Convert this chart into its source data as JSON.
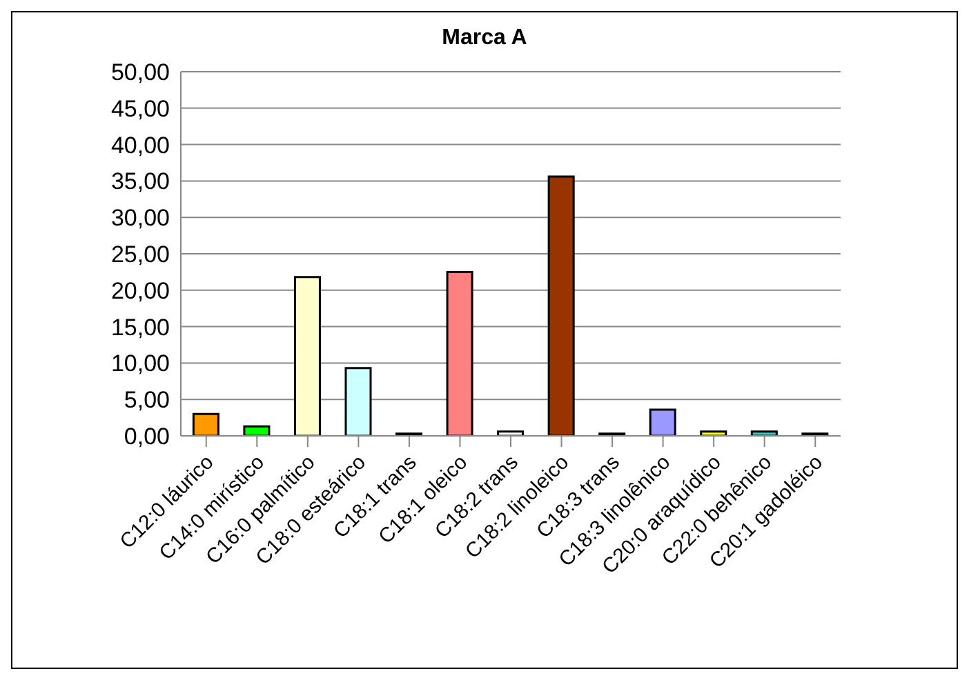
{
  "chart_data": {
    "type": "bar",
    "title": "Marca A",
    "categories": [
      "C12:0 láurico",
      "C14:0 mirístico",
      "C16:0 palmítico",
      "C18:0 esteárico",
      "C18:1 trans",
      "C18:1 oleico",
      "C18:2 trans",
      "C18:2 linoleico",
      "C18:3 trans",
      "C18:3 linolênico",
      "C20:0 araquídico",
      "C22:0 behênico",
      "C20:1 gadoléico"
    ],
    "values": [
      3.0,
      1.3,
      21.8,
      9.3,
      0.3,
      22.5,
      0.6,
      35.6,
      0.3,
      3.6,
      0.6,
      0.6,
      0.3
    ],
    "colors": [
      "#ff9900",
      "#00ff00",
      "#ffffcc",
      "#ccffff",
      "#000000",
      "#ff8080",
      "#ffffff",
      "#993300",
      "#000000",
      "#9999ff",
      "#ffff00",
      "#33cccc",
      "#000000"
    ],
    "ylim": [
      0,
      50
    ],
    "yticks": [
      {
        "value": 0,
        "label": "0,00"
      },
      {
        "value": 5,
        "label": "5,00"
      },
      {
        "value": 10,
        "label": "10,00"
      },
      {
        "value": 15,
        "label": "15,00"
      },
      {
        "value": 20,
        "label": "20,00"
      },
      {
        "value": 25,
        "label": "25,00"
      },
      {
        "value": 30,
        "label": "30,00"
      },
      {
        "value": 35,
        "label": "35,00"
      },
      {
        "value": 40,
        "label": "40,00"
      },
      {
        "value": 45,
        "label": "45,00"
      },
      {
        "value": 50,
        "label": "50,00"
      }
    ],
    "grid": "y"
  }
}
